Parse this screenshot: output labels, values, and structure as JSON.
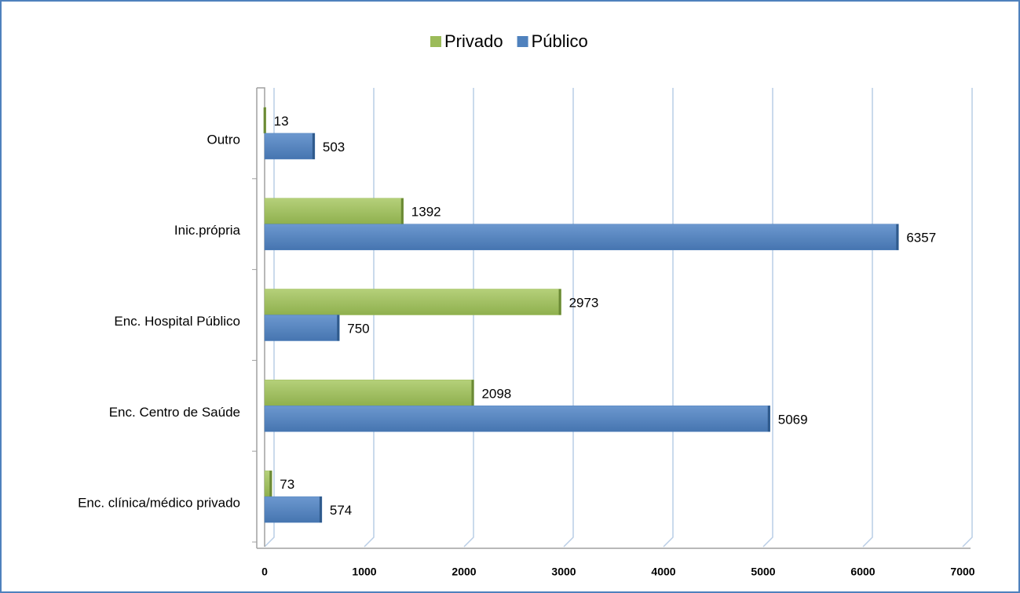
{
  "chart_data": {
    "type": "bar",
    "orientation": "horizontal",
    "categories": [
      "Outro",
      "Inic.própria",
      "Enc. Hospital Público",
      "Enc. Centro de Saúde",
      "Enc.  clínica/médico privado"
    ],
    "series": [
      {
        "name": "Privado",
        "color": "#9bbb59",
        "values": [
          13,
          1392,
          2973,
          2098,
          73
        ]
      },
      {
        "name": "Público",
        "color": "#4f81bd",
        "values": [
          503,
          6357,
          750,
          5069,
          574
        ]
      }
    ],
    "xlim": [
      0,
      7000
    ],
    "xticks": [
      0,
      1000,
      2000,
      3000,
      4000,
      5000,
      6000,
      7000
    ],
    "grid": true,
    "legend": "top"
  }
}
